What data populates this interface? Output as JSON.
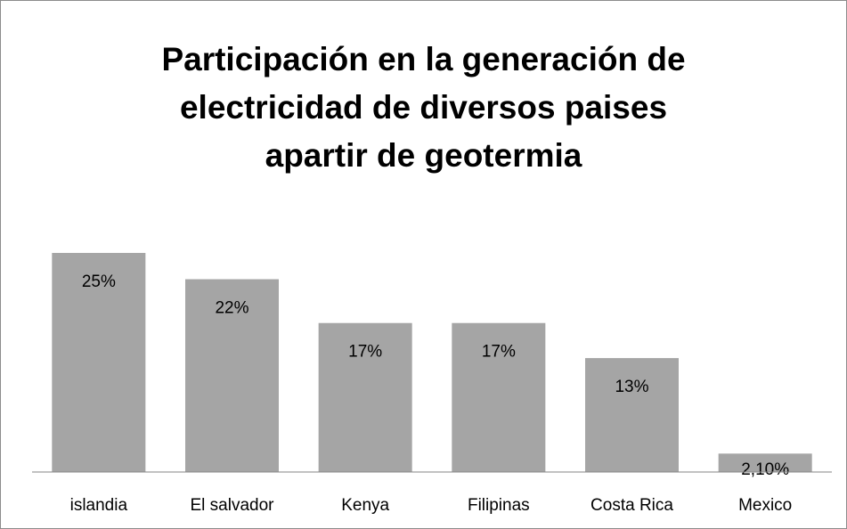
{
  "chart_data": {
    "type": "bar",
    "title": "Participación en la generación de\nelectricidad de diversos paises\napartir de geotermia",
    "categories": [
      "islandia",
      "El salvador",
      "Kenya",
      "Filipinas",
      "Costa Rica",
      "Mexico"
    ],
    "values": [
      25,
      22,
      17,
      17,
      13,
      2.1
    ],
    "value_labels": [
      "25%",
      "22%",
      "17%",
      "17%",
      "13%",
      "2,10%"
    ],
    "color": "#a5a5a5"
  }
}
